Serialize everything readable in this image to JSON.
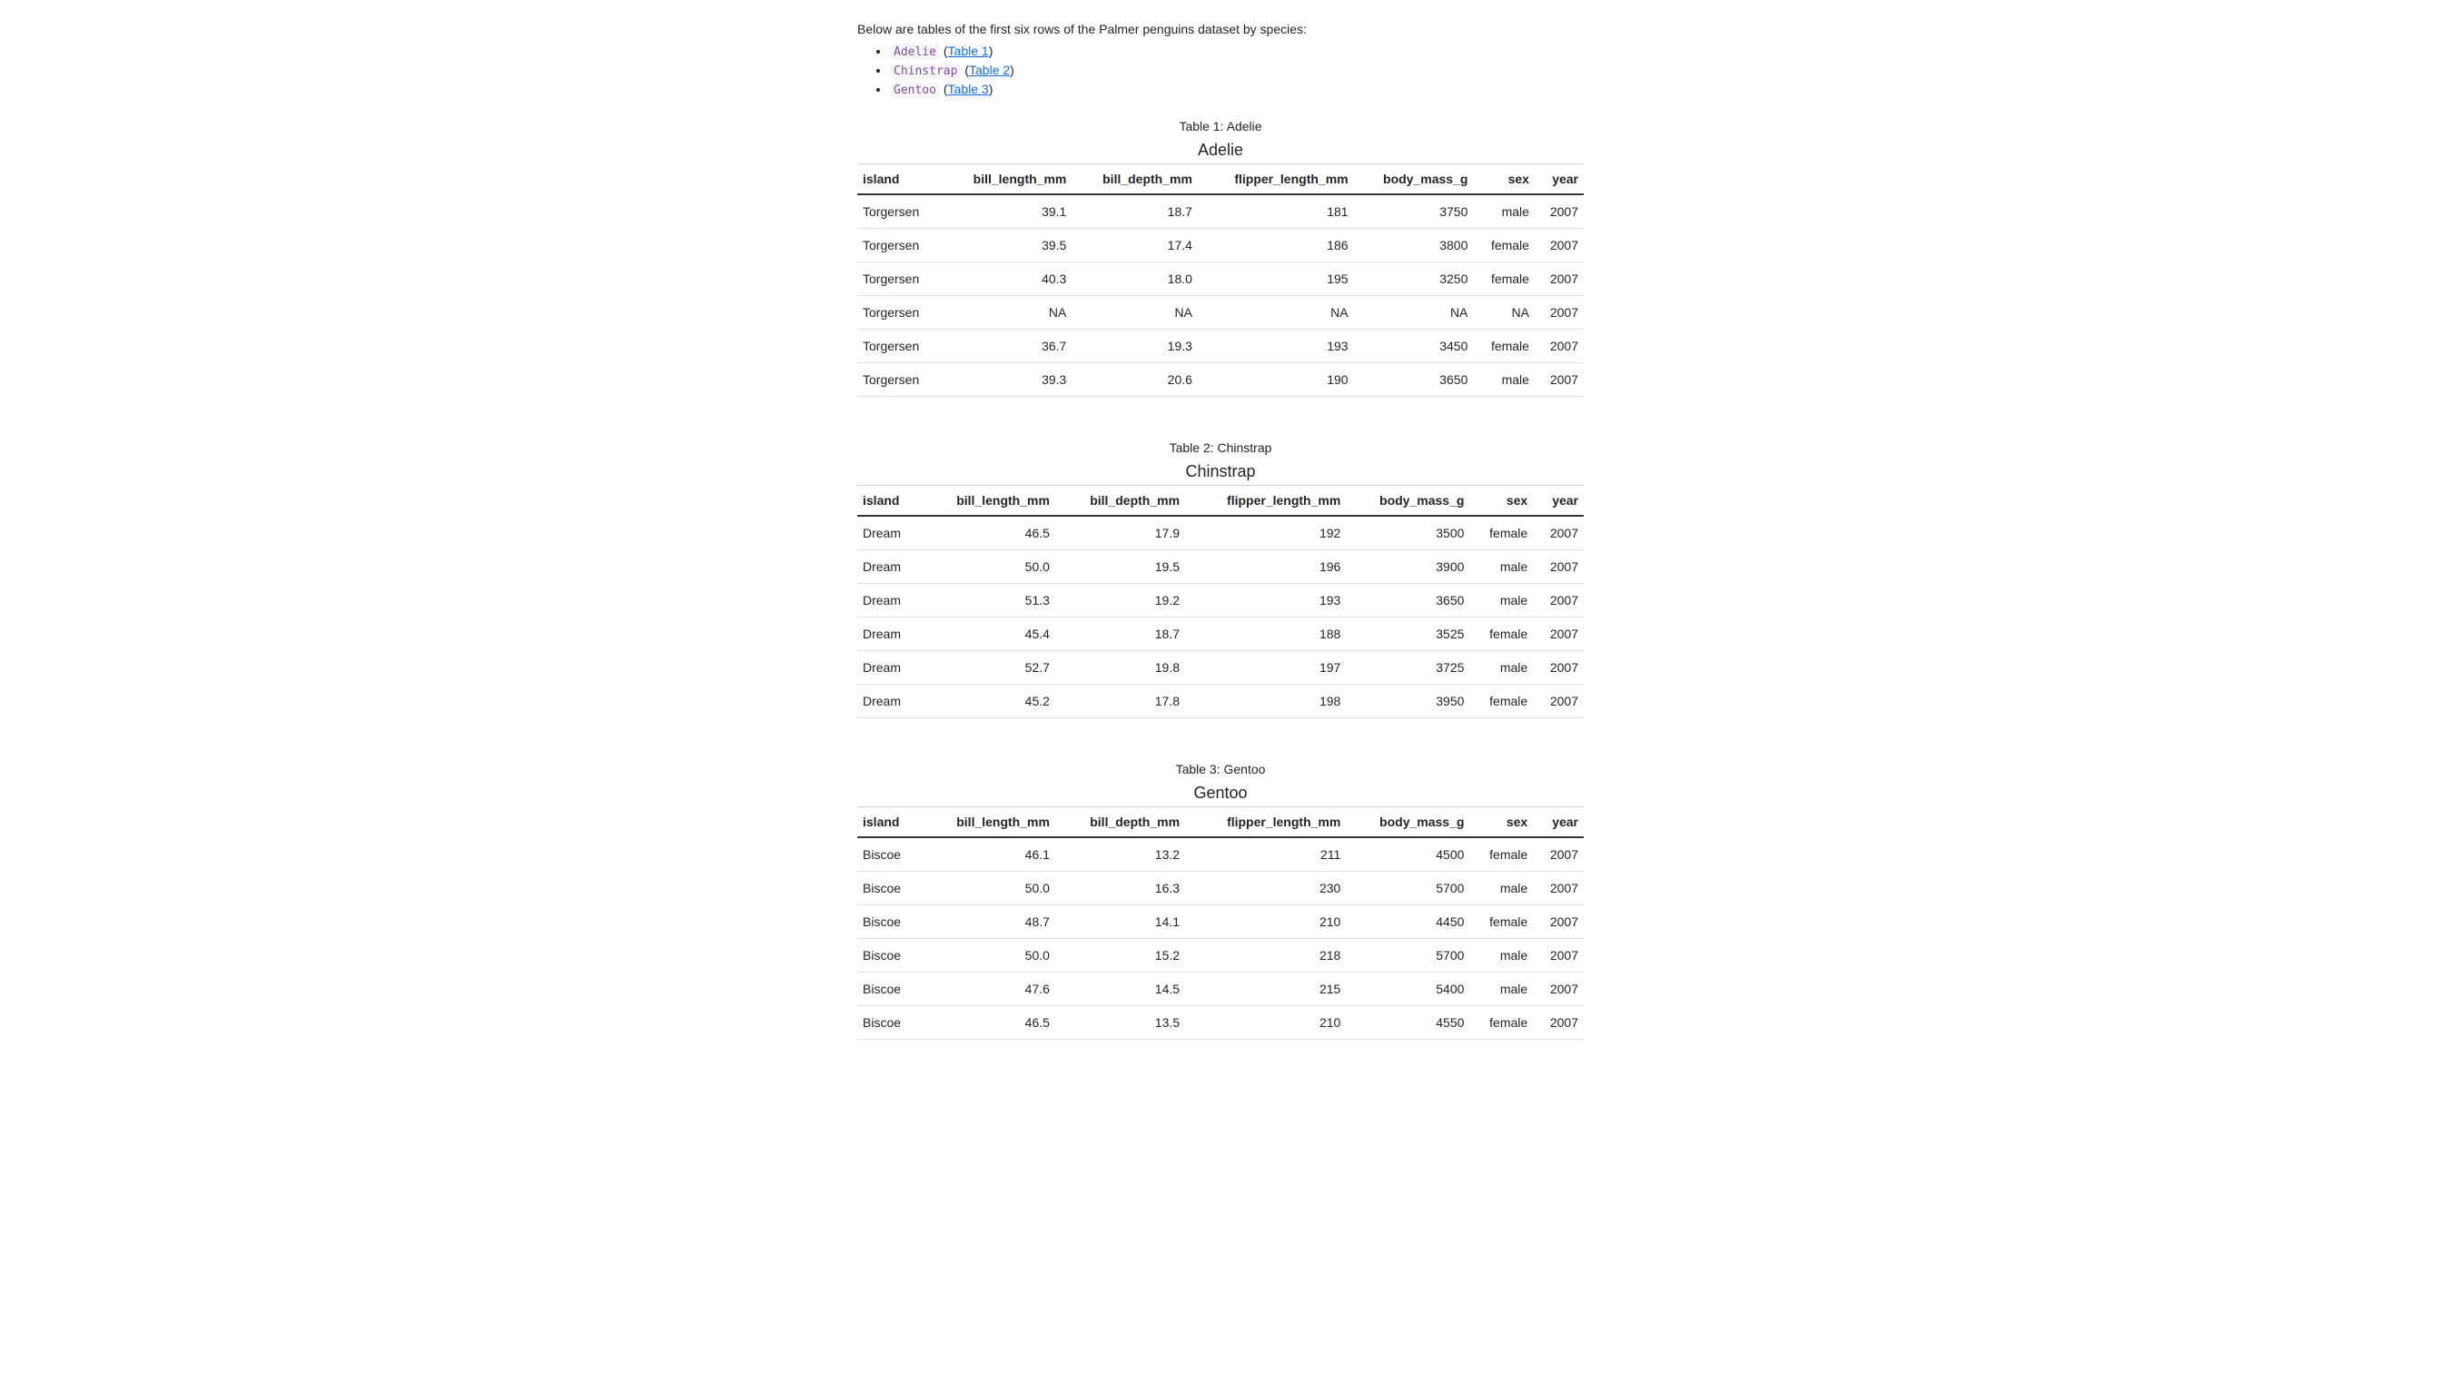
{
  "intro": "Below are tables of the first six rows of the Palmer penguins dataset by species:",
  "links": [
    {
      "code": "Adelie",
      "link_text": "Table 1"
    },
    {
      "code": "Chinstrap",
      "link_text": "Table 2"
    },
    {
      "code": "Gentoo",
      "link_text": "Table 3"
    }
  ],
  "columns": [
    "island",
    "bill_length_mm",
    "bill_depth_mm",
    "flipper_length_mm",
    "body_mass_g",
    "sex",
    "year"
  ],
  "tables": [
    {
      "caption": "Table 1: Adelie",
      "title": "Adelie",
      "rows": [
        [
          "Torgersen",
          "39.1",
          "18.7",
          "181",
          "3750",
          "male",
          "2007"
        ],
        [
          "Torgersen",
          "39.5",
          "17.4",
          "186",
          "3800",
          "female",
          "2007"
        ],
        [
          "Torgersen",
          "40.3",
          "18.0",
          "195",
          "3250",
          "female",
          "2007"
        ],
        [
          "Torgersen",
          "NA",
          "NA",
          "NA",
          "NA",
          "NA",
          "2007"
        ],
        [
          "Torgersen",
          "36.7",
          "19.3",
          "193",
          "3450",
          "female",
          "2007"
        ],
        [
          "Torgersen",
          "39.3",
          "20.6",
          "190",
          "3650",
          "male",
          "2007"
        ]
      ]
    },
    {
      "caption": "Table 2: Chinstrap",
      "title": "Chinstrap",
      "rows": [
        [
          "Dream",
          "46.5",
          "17.9",
          "192",
          "3500",
          "female",
          "2007"
        ],
        [
          "Dream",
          "50.0",
          "19.5",
          "196",
          "3900",
          "male",
          "2007"
        ],
        [
          "Dream",
          "51.3",
          "19.2",
          "193",
          "3650",
          "male",
          "2007"
        ],
        [
          "Dream",
          "45.4",
          "18.7",
          "188",
          "3525",
          "female",
          "2007"
        ],
        [
          "Dream",
          "52.7",
          "19.8",
          "197",
          "3725",
          "male",
          "2007"
        ],
        [
          "Dream",
          "45.2",
          "17.8",
          "198",
          "3950",
          "female",
          "2007"
        ]
      ]
    },
    {
      "caption": "Table 3: Gentoo",
      "title": "Gentoo",
      "rows": [
        [
          "Biscoe",
          "46.1",
          "13.2",
          "211",
          "4500",
          "female",
          "2007"
        ],
        [
          "Biscoe",
          "50.0",
          "16.3",
          "230",
          "5700",
          "male",
          "2007"
        ],
        [
          "Biscoe",
          "48.7",
          "14.1",
          "210",
          "4450",
          "female",
          "2007"
        ],
        [
          "Biscoe",
          "50.0",
          "15.2",
          "218",
          "5700",
          "male",
          "2007"
        ],
        [
          "Biscoe",
          "47.6",
          "14.5",
          "215",
          "5400",
          "male",
          "2007"
        ],
        [
          "Biscoe",
          "46.5",
          "13.5",
          "210",
          "4550",
          "female",
          "2007"
        ]
      ]
    }
  ],
  "style": {
    "link_color": "#0d6efd",
    "code_color": "#8250a0",
    "border_color": "#dee2e6",
    "header_underline": "#333333",
    "background": "#ffffff",
    "body_font_size": 14,
    "title_font_size": 18
  }
}
